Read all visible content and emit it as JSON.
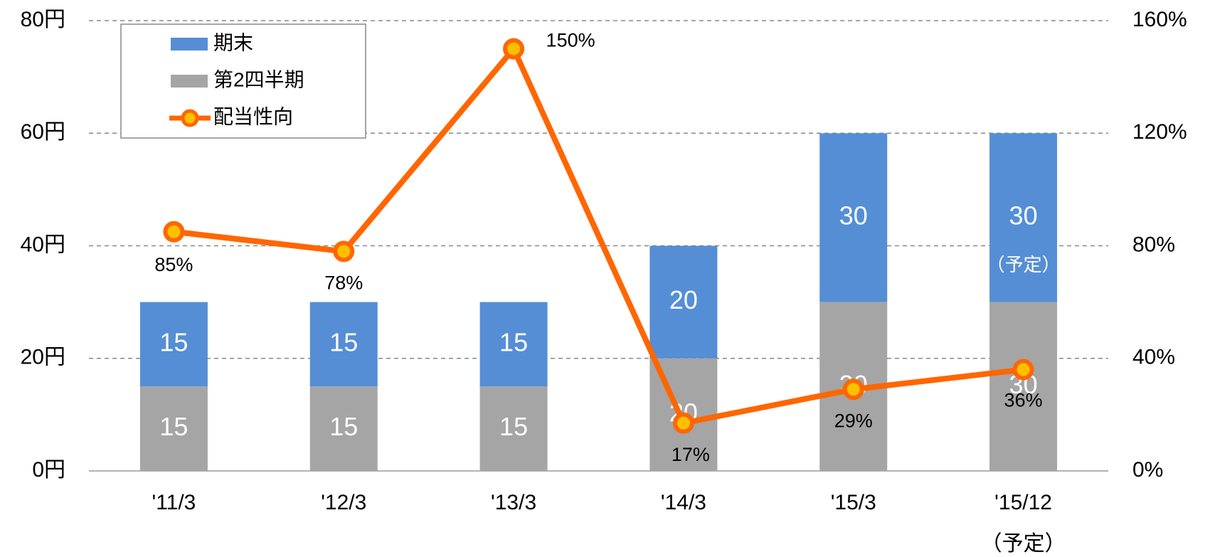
{
  "chart_data": {
    "type": "bar",
    "categories": [
      "'11/3",
      "'12/3",
      "'13/3",
      "'14/3",
      "'15/3",
      "'15/12"
    ],
    "series": [
      {
        "name": "第2四半期",
        "color": "#a5a5a5",
        "values": [
          15,
          15,
          15,
          20,
          30,
          30
        ]
      },
      {
        "name": "期末",
        "color": "#558ed5",
        "values": [
          15,
          15,
          15,
          20,
          30,
          30
        ]
      },
      {
        "name": "配当性向",
        "type": "line",
        "axis": "y2",
        "color": "#ff6600",
        "marker_color": "#ffc000",
        "values": [
          85,
          78,
          150,
          17,
          29,
          36
        ],
        "value_labels": [
          "85%",
          "78%",
          "150%",
          "17%",
          "29%",
          "36%"
        ]
      }
    ],
    "annotations": [
      "（予定）",
      "（予定）"
    ],
    "ylim": [
      0,
      80
    ],
    "yticks": [
      {
        "value": 0,
        "label": "0円"
      },
      {
        "value": 20,
        "label": "20円"
      },
      {
        "value": 40,
        "label": "40円"
      },
      {
        "value": 60,
        "label": "60円"
      },
      {
        "value": 80,
        "label": "80円"
      }
    ],
    "y2lim": [
      0,
      160
    ],
    "y2ticks": [
      {
        "value": 0,
        "label": "0%"
      },
      {
        "value": 40,
        "label": "40%"
      },
      {
        "value": 80,
        "label": "80%"
      },
      {
        "value": 120,
        "label": "120%"
      },
      {
        "value": 160,
        "label": "160%"
      }
    ],
    "grid": true,
    "legend": "upper left"
  }
}
